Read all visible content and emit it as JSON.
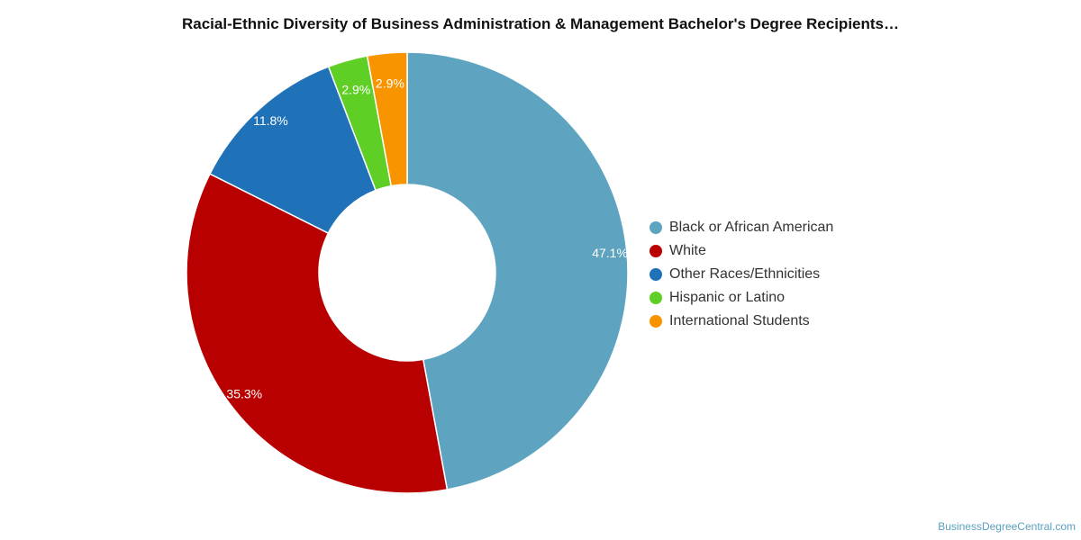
{
  "chart_data": {
    "type": "pie",
    "title": "Racial-Ethnic Diversity of Business Administration & Management Bachelor's Degree Recipients…",
    "donut": true,
    "legend_position": "right",
    "slices": [
      {
        "name": "Black or African American",
        "value": 47.1,
        "label": "47.1%",
        "color": "#5ea3c0"
      },
      {
        "name": "White",
        "value": 35.3,
        "label": "35.3%",
        "color": "#b80000"
      },
      {
        "name": "Other Races/Ethnicities",
        "value": 11.8,
        "label": "11.8%",
        "color": "#1f72b8"
      },
      {
        "name": "Hispanic or Latino",
        "value": 2.9,
        "label": "2.9%",
        "color": "#60cf25"
      },
      {
        "name": "International Students",
        "value": 2.9,
        "label": "2.9%",
        "color": "#f79400"
      }
    ]
  },
  "footer": {
    "source": "BusinessDegreeCentral.com"
  }
}
